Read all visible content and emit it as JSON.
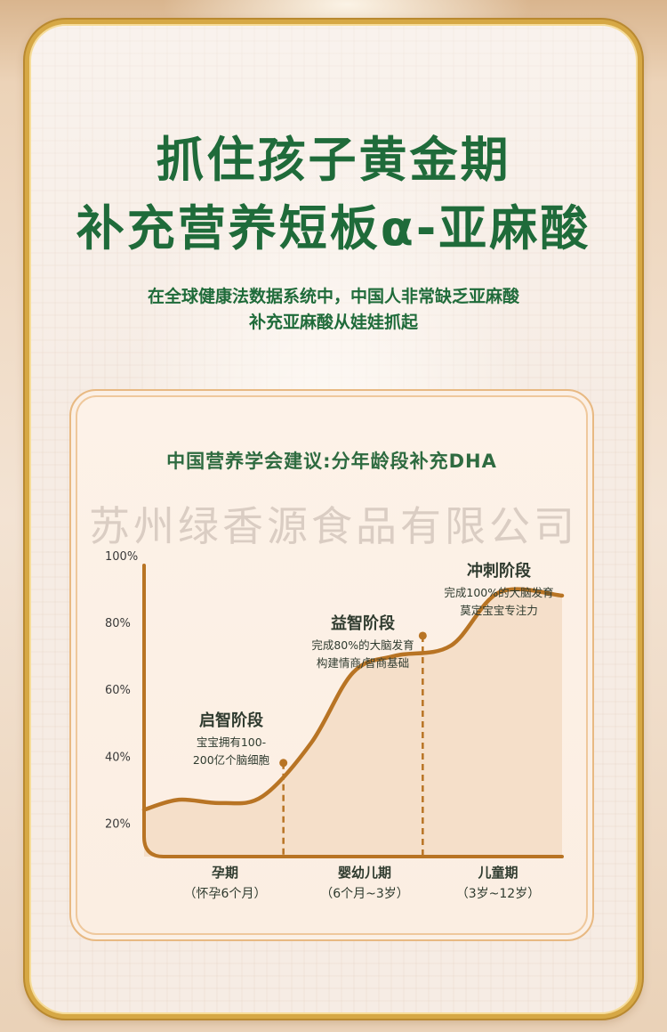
{
  "headline": {
    "line1": "抓住孩子黄金期",
    "line2": "补充营养短板α-亚麻酸"
  },
  "subtitle": {
    "line1": "在全球健康法数据系统中，中国人非常缺乏亚麻酸",
    "line2": "补充亚麻酸从娃娃抓起"
  },
  "watermark": "苏州绿香源食品有限公司",
  "colors": {
    "green": "#1f6b3a",
    "curve": "#b87424",
    "gold": "#d6a845"
  },
  "chart_data": {
    "type": "area",
    "title": "中国营养学会建议:分年龄段补充DHA",
    "y_ticks": [
      "100%",
      "80%",
      "60%",
      "40%",
      "20%"
    ],
    "y_tick_values": [
      100,
      80,
      60,
      40,
      20
    ],
    "ylim": [
      10,
      105
    ],
    "xlim": [
      0,
      3
    ],
    "curve": [
      {
        "x": 0.0,
        "y": 24
      },
      {
        "x": 0.25,
        "y": 27
      },
      {
        "x": 0.55,
        "y": 26
      },
      {
        "x": 0.85,
        "y": 28
      },
      {
        "x": 1.2,
        "y": 44
      },
      {
        "x": 1.5,
        "y": 65
      },
      {
        "x": 1.8,
        "y": 70
      },
      {
        "x": 2.2,
        "y": 73
      },
      {
        "x": 2.55,
        "y": 89
      },
      {
        "x": 3.0,
        "y": 88
      }
    ],
    "stages": [
      {
        "title": "启智阶段",
        "desc": [
          "宝宝拥有100-",
          "200亿个脑细胞"
        ],
        "marker_x": 1.0,
        "marker_y": 38
      },
      {
        "title": "益智阶段",
        "desc": [
          "完成80%的大脑发育",
          "构建情商/智商基础"
        ],
        "marker_x": 2.0,
        "marker_y": 76
      },
      {
        "title": "冲刺阶段",
        "desc": [
          "完成100%的大脑发育",
          "莫定宝宝专注力"
        ],
        "marker_x": null,
        "marker_y": null
      }
    ],
    "periods": [
      {
        "name": "孕期",
        "age": "（怀孕6个月）"
      },
      {
        "name": "婴幼儿期",
        "age": "（6个月~3岁）"
      },
      {
        "name": "儿童期",
        "age": "（3岁~12岁）"
      }
    ]
  }
}
